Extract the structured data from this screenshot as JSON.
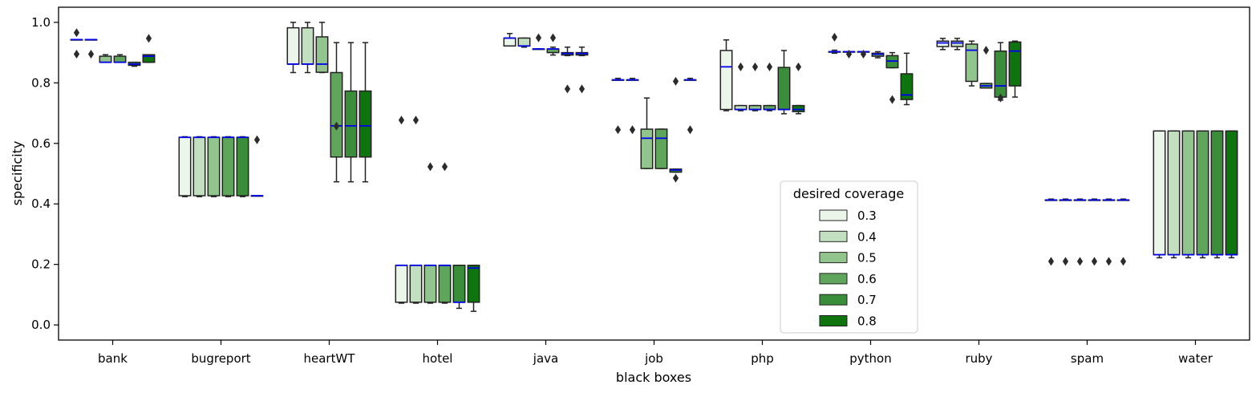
{
  "chart_data": {
    "type": "boxplot",
    "xlabel": "black boxes",
    "ylabel": "specificity",
    "ylim": [
      -0.05,
      1.05
    ],
    "yticks": [
      "0.0",
      "0.2",
      "0.4",
      "0.6",
      "0.8",
      "1.0"
    ],
    "categories": [
      "bank",
      "bugreport",
      "heartWT",
      "hotel",
      "java",
      "job",
      "php",
      "python",
      "ruby",
      "spam",
      "water"
    ],
    "legend": {
      "title": "desired coverage",
      "placement": "lower-center",
      "entries": [
        "0.3",
        "0.4",
        "0.5",
        "0.6",
        "0.7",
        "0.8"
      ]
    },
    "colors": {
      "hue": [
        "#ebf5ea",
        "#c2e0c0",
        "#92c58e",
        "#5fa55c",
        "#3a8e3a",
        "#0e740e"
      ],
      "median": "#0000ee",
      "edge": "#222222"
    },
    "grid": false,
    "series": [
      {
        "name": "0.3",
        "boxes": [
          {
            "q1": 0.943,
            "median": 0.943,
            "q3": 0.943,
            "whislo": 0.943,
            "whishi": 0.943,
            "fliers": [
              0.966,
              0.895
            ]
          },
          {
            "q1": 0.427,
            "median": 0.62,
            "q3": 0.62,
            "whislo": 0.424,
            "whishi": 0.622,
            "fliers": []
          },
          {
            "q1": 0.862,
            "median": 0.862,
            "q3": 0.982,
            "whislo": 0.834,
            "whishi": 1.0,
            "fliers": []
          },
          {
            "q1": 0.075,
            "median": 0.197,
            "q3": 0.197,
            "whislo": 0.072,
            "whishi": 0.197,
            "fliers": [
              0.677
            ]
          },
          {
            "q1": 0.922,
            "median": 0.948,
            "q3": 0.948,
            "whislo": 0.922,
            "whishi": 0.963,
            "fliers": []
          },
          {
            "q1": 0.81,
            "median": 0.81,
            "q3": 0.81,
            "whislo": 0.81,
            "whishi": 0.815,
            "fliers": [
              0.645
            ]
          },
          {
            "q1": 0.712,
            "median": 0.853,
            "q3": 0.907,
            "whislo": 0.708,
            "whishi": 0.942,
            "fliers": []
          },
          {
            "q1": 0.903,
            "median": 0.903,
            "q3": 0.903,
            "whislo": 0.898,
            "whishi": 0.908,
            "fliers": [
              0.951
            ]
          },
          {
            "q1": 0.92,
            "median": 0.932,
            "q3": 0.938,
            "whislo": 0.91,
            "whishi": 0.947,
            "fliers": []
          },
          {
            "q1": 0.413,
            "median": 0.413,
            "q3": 0.413,
            "whislo": 0.413,
            "whishi": 0.416,
            "fliers": [
              0.21
            ]
          },
          {
            "q1": 0.232,
            "median": 0.232,
            "q3": 0.641,
            "whislo": 0.222,
            "whishi": 0.641,
            "fliers": []
          }
        ]
      },
      {
        "name": "0.4",
        "boxes": [
          {
            "q1": 0.943,
            "median": 0.943,
            "q3": 0.943,
            "whislo": 0.943,
            "whishi": 0.943,
            "fliers": [
              0.895
            ]
          },
          {
            "q1": 0.427,
            "median": 0.62,
            "q3": 0.62,
            "whislo": 0.424,
            "whishi": 0.622,
            "fliers": []
          },
          {
            "q1": 0.862,
            "median": 0.862,
            "q3": 0.982,
            "whislo": 0.834,
            "whishi": 1.0,
            "fliers": []
          },
          {
            "q1": 0.075,
            "median": 0.197,
            "q3": 0.197,
            "whislo": 0.072,
            "whishi": 0.197,
            "fliers": [
              0.677
            ]
          },
          {
            "q1": 0.922,
            "median": 0.922,
            "q3": 0.948,
            "whislo": 0.918,
            "whishi": 0.948,
            "fliers": []
          },
          {
            "q1": 0.81,
            "median": 0.81,
            "q3": 0.81,
            "whislo": 0.81,
            "whishi": 0.815,
            "fliers": [
              0.645
            ]
          },
          {
            "q1": 0.712,
            "median": 0.712,
            "q3": 0.725,
            "whislo": 0.708,
            "whishi": 0.725,
            "fliers": [
              0.853
            ]
          },
          {
            "q1": 0.903,
            "median": 0.903,
            "q3": 0.903,
            "whislo": 0.903,
            "whishi": 0.903,
            "fliers": [
              0.895
            ]
          },
          {
            "q1": 0.92,
            "median": 0.932,
            "q3": 0.938,
            "whislo": 0.91,
            "whishi": 0.947,
            "fliers": []
          },
          {
            "q1": 0.413,
            "median": 0.413,
            "q3": 0.413,
            "whislo": 0.413,
            "whishi": 0.416,
            "fliers": [
              0.21
            ]
          },
          {
            "q1": 0.232,
            "median": 0.232,
            "q3": 0.641,
            "whislo": 0.222,
            "whishi": 0.641,
            "fliers": []
          }
        ]
      },
      {
        "name": "0.5",
        "boxes": [
          {
            "q1": 0.868,
            "median": 0.868,
            "q3": 0.888,
            "whislo": 0.868,
            "whishi": 0.893,
            "fliers": []
          },
          {
            "q1": 0.427,
            "median": 0.62,
            "q3": 0.62,
            "whislo": 0.424,
            "whishi": 0.622,
            "fliers": []
          },
          {
            "q1": 0.835,
            "median": 0.862,
            "q3": 0.952,
            "whislo": 0.834,
            "whishi": 1.0,
            "fliers": []
          },
          {
            "q1": 0.075,
            "median": 0.197,
            "q3": 0.197,
            "whislo": 0.072,
            "whishi": 0.197,
            "fliers": [
              0.523
            ]
          },
          {
            "q1": 0.912,
            "median": 0.912,
            "q3": 0.912,
            "whislo": 0.912,
            "whishi": 0.912,
            "fliers": [
              0.949
            ]
          },
          {
            "q1": 0.517,
            "median": 0.617,
            "q3": 0.647,
            "whislo": 0.517,
            "whishi": 0.75,
            "fliers": []
          },
          {
            "q1": 0.712,
            "median": 0.712,
            "q3": 0.725,
            "whislo": 0.708,
            "whishi": 0.725,
            "fliers": [
              0.853
            ]
          },
          {
            "q1": 0.903,
            "median": 0.903,
            "q3": 0.903,
            "whislo": 0.903,
            "whishi": 0.903,
            "fliers": [
              0.895
            ]
          },
          {
            "q1": 0.805,
            "median": 0.908,
            "q3": 0.928,
            "whislo": 0.79,
            "whishi": 0.938,
            "fliers": []
          },
          {
            "q1": 0.413,
            "median": 0.413,
            "q3": 0.413,
            "whislo": 0.413,
            "whishi": 0.416,
            "fliers": [
              0.21
            ]
          },
          {
            "q1": 0.232,
            "median": 0.232,
            "q3": 0.641,
            "whislo": 0.222,
            "whishi": 0.641,
            "fliers": []
          }
        ]
      },
      {
        "name": "0.6",
        "boxes": [
          {
            "q1": 0.868,
            "median": 0.868,
            "q3": 0.888,
            "whislo": 0.868,
            "whishi": 0.893,
            "fliers": []
          },
          {
            "q1": 0.427,
            "median": 0.62,
            "q3": 0.62,
            "whislo": 0.424,
            "whishi": 0.622,
            "fliers": []
          },
          {
            "q1": 0.555,
            "median": 0.658,
            "q3": 0.834,
            "whislo": 0.473,
            "whishi": 0.933,
            "fliers": [
              0.657
            ]
          },
          {
            "q1": 0.075,
            "median": 0.197,
            "q3": 0.197,
            "whislo": 0.072,
            "whishi": 0.197,
            "fliers": [
              0.523
            ]
          },
          {
            "q1": 0.9,
            "median": 0.912,
            "q3": 0.912,
            "whislo": 0.892,
            "whishi": 0.918,
            "fliers": [
              0.949
            ]
          },
          {
            "q1": 0.517,
            "median": 0.617,
            "q3": 0.647,
            "whislo": 0.517,
            "whishi": 0.647,
            "fliers": []
          },
          {
            "q1": 0.712,
            "median": 0.712,
            "q3": 0.725,
            "whislo": 0.708,
            "whishi": 0.725,
            "fliers": [
              0.853
            ]
          },
          {
            "q1": 0.888,
            "median": 0.895,
            "q3": 0.898,
            "whislo": 0.883,
            "whishi": 0.903,
            "fliers": []
          },
          {
            "q1": 0.783,
            "median": 0.79,
            "q3": 0.798,
            "whislo": 0.783,
            "whishi": 0.798,
            "fliers": [
              0.908
            ]
          },
          {
            "q1": 0.413,
            "median": 0.413,
            "q3": 0.413,
            "whislo": 0.413,
            "whishi": 0.416,
            "fliers": [
              0.21
            ]
          },
          {
            "q1": 0.232,
            "median": 0.232,
            "q3": 0.641,
            "whislo": 0.222,
            "whishi": 0.641,
            "fliers": []
          }
        ]
      },
      {
        "name": "0.7",
        "boxes": [
          {
            "q1": 0.858,
            "median": 0.862,
            "q3": 0.868,
            "whislo": 0.855,
            "whishi": 0.868,
            "fliers": []
          },
          {
            "q1": 0.427,
            "median": 0.62,
            "q3": 0.62,
            "whislo": 0.424,
            "whishi": 0.622,
            "fliers": []
          },
          {
            "q1": 0.555,
            "median": 0.658,
            "q3": 0.773,
            "whislo": 0.473,
            "whishi": 0.933,
            "fliers": []
          },
          {
            "q1": 0.075,
            "median": 0.075,
            "q3": 0.197,
            "whislo": 0.055,
            "whishi": 0.197,
            "fliers": []
          },
          {
            "q1": 0.892,
            "median": 0.897,
            "q3": 0.9,
            "whislo": 0.89,
            "whishi": 0.918,
            "fliers": [
              0.78
            ]
          },
          {
            "q1": 0.505,
            "median": 0.512,
            "q3": 0.515,
            "whislo": 0.505,
            "whishi": 0.515,
            "fliers": [
              0.805,
              0.485
            ]
          },
          {
            "q1": 0.712,
            "median": 0.712,
            "q3": 0.851,
            "whislo": 0.698,
            "whishi": 0.907,
            "fliers": []
          },
          {
            "q1": 0.85,
            "median": 0.872,
            "q3": 0.89,
            "whislo": 0.85,
            "whishi": 0.9,
            "fliers": [
              0.745
            ]
          },
          {
            "q1": 0.753,
            "median": 0.79,
            "q3": 0.905,
            "whislo": 0.743,
            "whishi": 0.933,
            "fliers": [
              0.75
            ]
          },
          {
            "q1": 0.413,
            "median": 0.413,
            "q3": 0.413,
            "whislo": 0.413,
            "whishi": 0.416,
            "fliers": [
              0.21
            ]
          },
          {
            "q1": 0.232,
            "median": 0.232,
            "q3": 0.641,
            "whislo": 0.222,
            "whishi": 0.641,
            "fliers": []
          }
        ]
      },
      {
        "name": "0.8",
        "boxes": [
          {
            "q1": 0.868,
            "median": 0.888,
            "q3": 0.893,
            "whislo": 0.868,
            "whishi": 0.893,
            "fliers": [
              0.947
            ]
          },
          {
            "q1": 0.427,
            "median": 0.427,
            "q3": 0.427,
            "whislo": 0.427,
            "whishi": 0.427,
            "fliers": [
              0.612
            ]
          },
          {
            "q1": 0.555,
            "median": 0.658,
            "q3": 0.773,
            "whislo": 0.473,
            "whishi": 0.933,
            "fliers": []
          },
          {
            "q1": 0.075,
            "median": 0.188,
            "q3": 0.197,
            "whislo": 0.045,
            "whishi": 0.197,
            "fliers": []
          },
          {
            "q1": 0.892,
            "median": 0.897,
            "q3": 0.9,
            "whislo": 0.89,
            "whishi": 0.918,
            "fliers": [
              0.78
            ]
          },
          {
            "q1": 0.81,
            "median": 0.81,
            "q3": 0.81,
            "whislo": 0.81,
            "whishi": 0.815,
            "fliers": [
              0.645
            ]
          },
          {
            "q1": 0.705,
            "median": 0.712,
            "q3": 0.725,
            "whislo": 0.698,
            "whishi": 0.725,
            "fliers": [
              0.853
            ]
          },
          {
            "q1": 0.745,
            "median": 0.76,
            "q3": 0.83,
            "whislo": 0.728,
            "whishi": 0.898,
            "fliers": []
          },
          {
            "q1": 0.79,
            "median": 0.905,
            "q3": 0.935,
            "whislo": 0.753,
            "whishi": 0.938,
            "fliers": []
          },
          {
            "q1": 0.413,
            "median": 0.413,
            "q3": 0.413,
            "whislo": 0.413,
            "whishi": 0.416,
            "fliers": [
              0.21
            ]
          },
          {
            "q1": 0.232,
            "median": 0.232,
            "q3": 0.641,
            "whislo": 0.222,
            "whishi": 0.641,
            "fliers": []
          }
        ]
      }
    ]
  }
}
